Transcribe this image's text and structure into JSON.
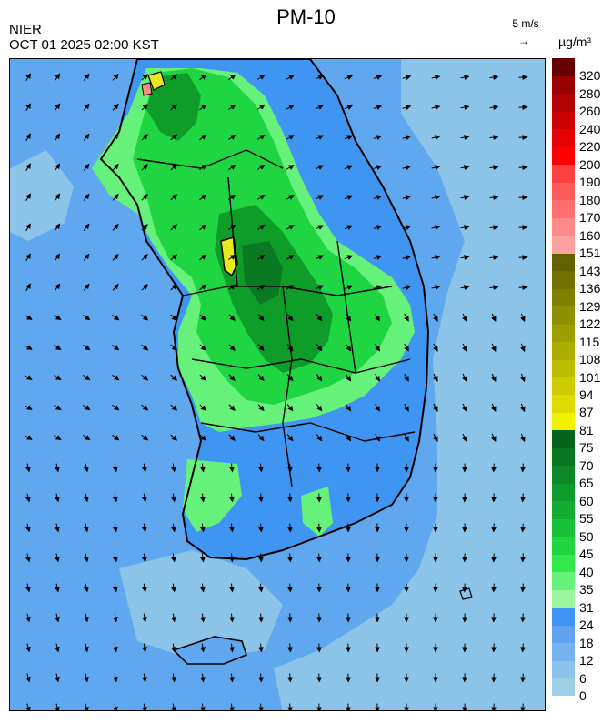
{
  "header": {
    "title": "PM-10",
    "agency": "NIER",
    "timestamp": "OCT 01 2025 02:00 KST",
    "wind_reference": "5 m/s",
    "wind_arrow": "→",
    "unit": "µg/m³"
  },
  "colors": {
    "sea_low": "#8cc3e8",
    "sea_mid": "#5fa8f0",
    "land_mod": "#3f96f2",
    "green_light": "#66f27a",
    "green": "#1fd642",
    "green_dark": "#0f9d2a",
    "green_deep": "#0a7a22",
    "yellow": "#e8e81e",
    "pink": "#ff8c8c",
    "outline": "#000000"
  },
  "legend": {
    "bins": [
      {
        "label": "0",
        "color": "#9ccfe6"
      },
      {
        "label": "6",
        "color": "#8cc3ea"
      },
      {
        "label": "12",
        "color": "#75b2ee"
      },
      {
        "label": "18",
        "color": "#5da3f0"
      },
      {
        "label": "24",
        "color": "#3f93f2"
      },
      {
        "label": "31",
        "color": "#9af59c"
      },
      {
        "label": "35",
        "color": "#66f27a"
      },
      {
        "label": "40",
        "color": "#33e84a"
      },
      {
        "label": "45",
        "color": "#1fd642"
      },
      {
        "label": "50",
        "color": "#17c23a"
      },
      {
        "label": "55",
        "color": "#12ad32"
      },
      {
        "label": "60",
        "color": "#0f9a2c"
      },
      {
        "label": "65",
        "color": "#0c8827"
      },
      {
        "label": "70",
        "color": "#097622"
      },
      {
        "label": "75",
        "color": "#06641c"
      },
      {
        "label": "81",
        "color": "#f2f200"
      },
      {
        "label": "87",
        "color": "#dcdc00"
      },
      {
        "label": "94",
        "color": "#cccc00"
      },
      {
        "label": "101",
        "color": "#bdbd00"
      },
      {
        "label": "108",
        "color": "#adad00"
      },
      {
        "label": "115",
        "color": "#9e9e00"
      },
      {
        "label": "122",
        "color": "#8f8f00"
      },
      {
        "label": "129",
        "color": "#808000"
      },
      {
        "label": "136",
        "color": "#717100"
      },
      {
        "label": "143",
        "color": "#626200"
      },
      {
        "label": "151",
        "color": "#ffa0a0"
      },
      {
        "label": "160",
        "color": "#ff8a8a"
      },
      {
        "label": "170",
        "color": "#ff7070"
      },
      {
        "label": "180",
        "color": "#ff5a5a"
      },
      {
        "label": "190",
        "color": "#ff4040"
      },
      {
        "label": "200",
        "color": "#ff0000"
      },
      {
        "label": "220",
        "color": "#e60000"
      },
      {
        "label": "240",
        "color": "#cc0000"
      },
      {
        "label": "260",
        "color": "#b30000"
      },
      {
        "label": "280",
        "color": "#990000"
      },
      {
        "label": "320",
        "color": "#660000"
      }
    ]
  }
}
